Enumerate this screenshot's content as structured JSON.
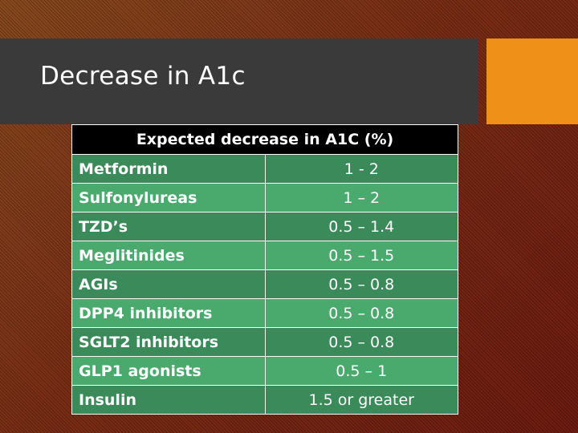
{
  "slide": {
    "title": "Decrease in A1c",
    "colors": {
      "title_bar": "#3a3a3a",
      "accent": "#ef9118",
      "header_bg": "#000000",
      "row_dark": "#3a8a5a",
      "row_light": "#4aaa6d"
    }
  },
  "table": {
    "header": "Expected decrease in A1C (%)",
    "rows": [
      {
        "drug": "Metformin",
        "value": "1 - 2"
      },
      {
        "drug": "Sulfonylureas",
        "value": "1 – 2"
      },
      {
        "drug": "TZD’s",
        "value": "0.5 – 1.4"
      },
      {
        "drug": "Meglitinides",
        "value": "0.5 – 1.5"
      },
      {
        "drug": "AGIs",
        "value": "0.5 – 0.8"
      },
      {
        "drug": "DPP4 inhibitors",
        "value": "0.5 – 0.8"
      },
      {
        "drug": "SGLT2 inhibitors",
        "value": "0.5 – 0.8"
      },
      {
        "drug": "GLP1 agonists",
        "value": "0.5 – 1"
      },
      {
        "drug": "Insulin",
        "value": "1.5 or greater"
      }
    ]
  }
}
